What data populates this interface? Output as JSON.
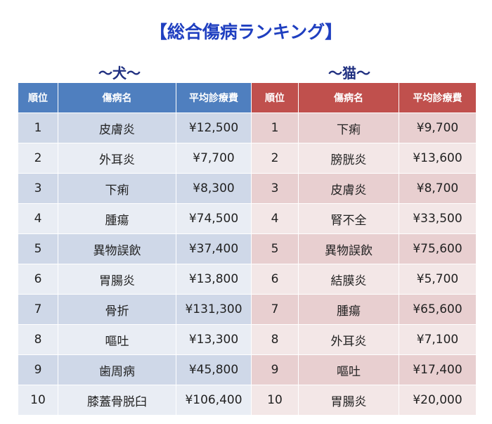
{
  "title": "【総合傷病ランキング】",
  "dog": {
    "label": "～犬～",
    "header": [
      "順位",
      "傷病名",
      "平均診療費"
    ],
    "rows": [
      [
        "1",
        "皮膚炎",
        "¥12,500"
      ],
      [
        "2",
        "外耳炎",
        "¥7,700"
      ],
      [
        "3",
        "下痢",
        "¥8,300"
      ],
      [
        "4",
        "腫瘍",
        "¥74,500"
      ],
      [
        "5",
        "異物誤飲",
        "¥37,400"
      ],
      [
        "6",
        "胃腸炎",
        "¥13,800"
      ],
      [
        "7",
        "骨折",
        "¥131,300"
      ],
      [
        "8",
        "嘔吐",
        "¥13,300"
      ],
      [
        "9",
        "歯周病",
        "¥45,800"
      ],
      [
        "10",
        "膝蓋骨脱臼",
        "¥106,400"
      ]
    ]
  },
  "cat": {
    "label": "～猫～",
    "header": [
      "順位",
      "傷病名",
      "平均診療費"
    ],
    "rows": [
      [
        "1",
        "下痢",
        "¥9,700"
      ],
      [
        "2",
        "膀胱炎",
        "¥13,600"
      ],
      [
        "3",
        "皮膚炎",
        "¥8,700"
      ],
      [
        "4",
        "腎不全",
        "¥33,500"
      ],
      [
        "5",
        "異物誤飲",
        "¥75,600"
      ],
      [
        "6",
        "結膜炎",
        "¥5,700"
      ],
      [
        "7",
        "腫瘍",
        "¥65,600"
      ],
      [
        "8",
        "外耳炎",
        "¥7,100"
      ],
      [
        "9",
        "嘔吐",
        "¥17,400"
      ],
      [
        "10",
        "胃腸炎",
        "¥20,000"
      ]
    ]
  }
}
